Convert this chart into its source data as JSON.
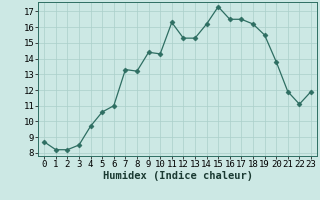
{
  "x": [
    0,
    1,
    2,
    3,
    4,
    5,
    6,
    7,
    8,
    9,
    10,
    11,
    12,
    13,
    14,
    15,
    16,
    17,
    18,
    19,
    20,
    21,
    22,
    23
  ],
  "y": [
    8.7,
    8.2,
    8.2,
    8.5,
    9.7,
    10.6,
    11.0,
    13.3,
    13.2,
    14.4,
    14.3,
    16.3,
    15.3,
    15.3,
    16.2,
    17.3,
    16.5,
    16.5,
    16.2,
    15.5,
    13.8,
    11.9,
    11.1,
    11.9
  ],
  "line_color": "#2e6e62",
  "marker": "D",
  "marker_size": 2.5,
  "bg_color": "#cce8e4",
  "grid_color": "#aacfca",
  "xlabel": "Humidex (Indice chaleur)",
  "ylim": [
    7.8,
    17.6
  ],
  "xlim": [
    -0.5,
    23.5
  ],
  "yticks": [
    8,
    9,
    10,
    11,
    12,
    13,
    14,
    15,
    16,
    17
  ],
  "xticks": [
    0,
    1,
    2,
    3,
    4,
    5,
    6,
    7,
    8,
    9,
    10,
    11,
    12,
    13,
    14,
    15,
    16,
    17,
    18,
    19,
    20,
    21,
    22,
    23
  ],
  "tick_fontsize": 6.5,
  "xlabel_fontsize": 7.5
}
